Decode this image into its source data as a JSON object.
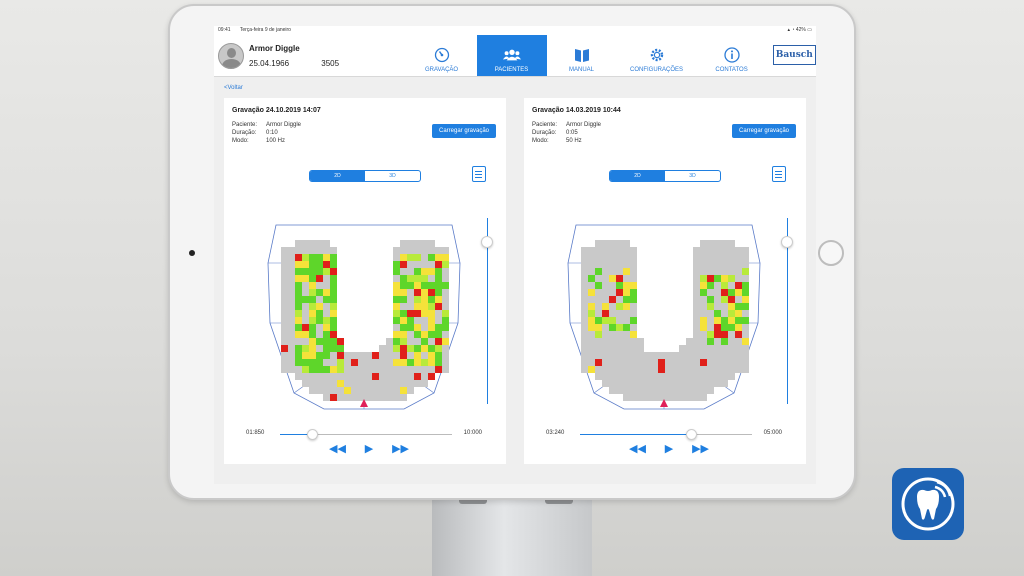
{
  "status": {
    "time": "09:41",
    "date": "Terça-feira 9 de janeiro",
    "battery": "42%"
  },
  "patient": {
    "name": "Armor Diggle",
    "dob": "25.04.1966",
    "id": "3505"
  },
  "nav": [
    {
      "label": "GRAVAÇÃO",
      "icon": "gauge-icon",
      "active": false
    },
    {
      "label": "PACIENTES",
      "icon": "users-icon",
      "active": true
    },
    {
      "label": "MANUAL",
      "icon": "book-icon",
      "active": false
    },
    {
      "label": "CONFIGURAÇÕES",
      "icon": "gear-icon",
      "active": false
    },
    {
      "label": "CONTATOS",
      "icon": "info-icon",
      "active": false
    }
  ],
  "brand": "Bausch",
  "back_label": "<Voltar",
  "meta_labels": {
    "patient": "Paciente:",
    "duration": "Duração:",
    "mode": "Modo:"
  },
  "load_label": "Carregar gravação",
  "view_modes": [
    "2D",
    "3D"
  ],
  "panels": [
    {
      "title": "Gravação 24.10.2019 14:07",
      "patient": "Armor Diggle",
      "duration": "0:10",
      "mode": "100 Hz",
      "time_current": "01:850",
      "time_total": "10:000",
      "progress": 0.185,
      "density": "high"
    },
    {
      "title": "Gravação 14.03.2019 10:44",
      "patient": "Armor Diggle",
      "duration": "0:05",
      "mode": "50 Hz",
      "time_current": "03:240",
      "time_total": "05:000",
      "progress": 0.648,
      "density": "low"
    }
  ],
  "colors": {
    "accent": "#1f7fe0",
    "arch_gray": "#c9c9c9",
    "hit_red": "#e0201a",
    "hit_yellow": "#f5e23a",
    "hit_green": "#5ed62a",
    "hit_lime": "#b8ea3a"
  }
}
